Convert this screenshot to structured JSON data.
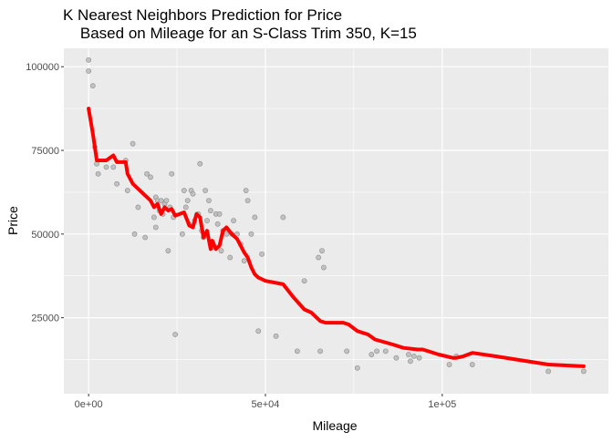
{
  "chart_data": {
    "type": "scatter",
    "title_line1": "K Nearest Neighbors Prediction for Price",
    "title_line2": "    Based on Mileage for an S-Class Trim 350, K=15",
    "xlabel": "Mileage",
    "ylabel": "Price",
    "xlim": [
      -7000,
      147000
    ],
    "ylim": [
      2300,
      105500
    ],
    "x_ticks": [
      {
        "value": 0,
        "label": "0e+00"
      },
      {
        "value": 50000,
        "label": "5e+04"
      },
      {
        "value": 100000,
        "label": "1e+05"
      }
    ],
    "y_ticks": [
      {
        "value": 25000,
        "label": "25000"
      },
      {
        "value": 50000,
        "label": "50000"
      },
      {
        "value": 75000,
        "label": "75000"
      },
      {
        "value": 100000,
        "label": "100000"
      }
    ],
    "grid": true,
    "colors": {
      "panel_bg": "#ebebeb",
      "grid": "#ffffff",
      "points": "#bdbdbd",
      "points_stroke": "#8c8c8c",
      "line": "#ff0000"
    },
    "series": [
      {
        "type": "scatter",
        "points": [
          [
            0,
            102000
          ],
          [
            0,
            98700
          ],
          [
            1200,
            94300
          ],
          [
            1800,
            76000
          ],
          [
            2300,
            71000
          ],
          [
            2700,
            68000
          ],
          [
            5000,
            70000
          ],
          [
            7000,
            70000
          ],
          [
            8000,
            65000
          ],
          [
            10500,
            72000
          ],
          [
            11000,
            63000
          ],
          [
            12500,
            77000
          ],
          [
            13000,
            50000
          ],
          [
            14000,
            58000
          ],
          [
            16000,
            49000
          ],
          [
            16500,
            68000
          ],
          [
            17500,
            67000
          ],
          [
            18500,
            55000
          ],
          [
            19000,
            61000
          ],
          [
            19000,
            52000
          ],
          [
            19500,
            60000
          ],
          [
            20000,
            57000
          ],
          [
            20500,
            60000
          ],
          [
            21000,
            56000
          ],
          [
            21500,
            59000
          ],
          [
            22000,
            60000
          ],
          [
            22500,
            45000
          ],
          [
            23000,
            58000
          ],
          [
            23500,
            68000
          ],
          [
            24000,
            55000
          ],
          [
            24500,
            20000
          ],
          [
            26500,
            50000
          ],
          [
            27000,
            63000
          ],
          [
            27500,
            58000
          ],
          [
            28000,
            60000
          ],
          [
            28500,
            53000
          ],
          [
            29000,
            63000
          ],
          [
            29500,
            62000
          ],
          [
            30000,
            54000
          ],
          [
            31000,
            56000
          ],
          [
            31500,
            71000
          ],
          [
            32000,
            51000
          ],
          [
            32500,
            49000
          ],
          [
            33000,
            63000
          ],
          [
            33500,
            54000
          ],
          [
            34000,
            60000
          ],
          [
            34500,
            57000
          ],
          [
            35000,
            46000
          ],
          [
            36000,
            56000
          ],
          [
            36500,
            53000
          ],
          [
            37000,
            56000
          ],
          [
            37500,
            45000
          ],
          [
            38000,
            51000
          ],
          [
            39000,
            50000
          ],
          [
            40000,
            43000
          ],
          [
            40500,
            50000
          ],
          [
            41000,
            54000
          ],
          [
            42000,
            50000
          ],
          [
            43000,
            47000
          ],
          [
            44000,
            42000
          ],
          [
            44500,
            63000
          ],
          [
            45000,
            60000
          ],
          [
            46000,
            50000
          ],
          [
            47000,
            55000
          ],
          [
            48000,
            21000
          ],
          [
            49000,
            44000
          ],
          [
            53000,
            19500
          ],
          [
            55000,
            55000
          ],
          [
            59000,
            15000
          ],
          [
            61000,
            36000
          ],
          [
            65000,
            43000
          ],
          [
            65500,
            15000
          ],
          [
            66000,
            45000
          ],
          [
            66500,
            40000
          ],
          [
            73000,
            15000
          ],
          [
            76000,
            10000
          ],
          [
            80000,
            14000
          ],
          [
            81500,
            15000
          ],
          [
            84000,
            15000
          ],
          [
            87000,
            13000
          ],
          [
            90500,
            14000
          ],
          [
            91000,
            12000
          ],
          [
            92000,
            13500
          ],
          [
            93500,
            13000
          ],
          [
            102000,
            11000
          ],
          [
            104000,
            13500
          ],
          [
            108500,
            11000
          ],
          [
            130000,
            9000
          ],
          [
            140000,
            9000
          ]
        ]
      },
      {
        "type": "line",
        "points": [
          [
            0,
            87500
          ],
          [
            1200,
            80000
          ],
          [
            2300,
            72000
          ],
          [
            5000,
            72000
          ],
          [
            7000,
            73500
          ],
          [
            8000,
            71500
          ],
          [
            10500,
            71500
          ],
          [
            11000,
            68000
          ],
          [
            12500,
            65000
          ],
          [
            16000,
            61500
          ],
          [
            17500,
            60000
          ],
          [
            18500,
            58000
          ],
          [
            19500,
            59000
          ],
          [
            20500,
            56000
          ],
          [
            21500,
            58000
          ],
          [
            22500,
            57000
          ],
          [
            23500,
            57500
          ],
          [
            24500,
            55500
          ],
          [
            27000,
            56500
          ],
          [
            28500,
            52500
          ],
          [
            29500,
            52000
          ],
          [
            30500,
            56000
          ],
          [
            31500,
            55000
          ],
          [
            32500,
            49000
          ],
          [
            33500,
            51000
          ],
          [
            34500,
            45500
          ],
          [
            35000,
            48000
          ],
          [
            36000,
            45500
          ],
          [
            37000,
            46500
          ],
          [
            38000,
            51000
          ],
          [
            39000,
            52000
          ],
          [
            40500,
            50000
          ],
          [
            42000,
            48500
          ],
          [
            44000,
            44500
          ],
          [
            45000,
            43000
          ],
          [
            46000,
            40000
          ],
          [
            47000,
            38000
          ],
          [
            48000,
            37000
          ],
          [
            50000,
            36000
          ],
          [
            55000,
            35000
          ],
          [
            58000,
            31000
          ],
          [
            61000,
            27500
          ],
          [
            63000,
            26500
          ],
          [
            65500,
            24000
          ],
          [
            67000,
            23500
          ],
          [
            72000,
            23500
          ],
          [
            73500,
            23000
          ],
          [
            76000,
            21000
          ],
          [
            79000,
            20000
          ],
          [
            81000,
            18500
          ],
          [
            86000,
            17000
          ],
          [
            89000,
            16000
          ],
          [
            93000,
            15500
          ],
          [
            94500,
            15500
          ],
          [
            99000,
            14000
          ],
          [
            103000,
            13000
          ],
          [
            104000,
            13000
          ],
          [
            106000,
            13500
          ],
          [
            108500,
            14500
          ],
          [
            115000,
            13500
          ],
          [
            130000,
            11000
          ],
          [
            140000,
            10500
          ]
        ]
      }
    ]
  }
}
